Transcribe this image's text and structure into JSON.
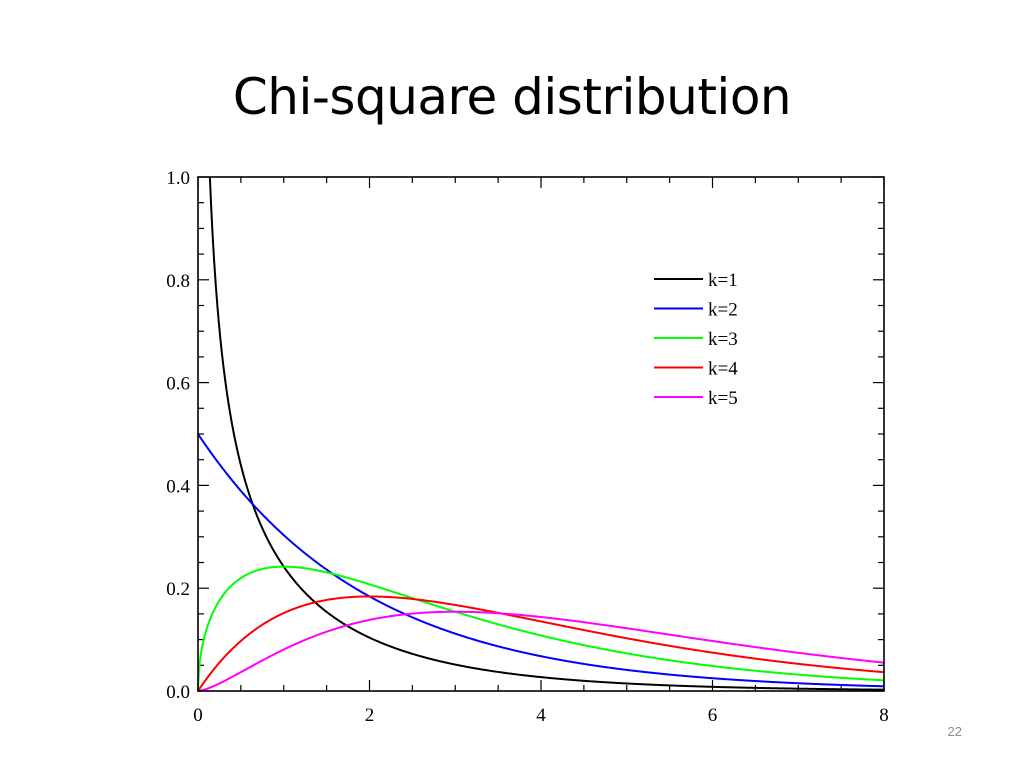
{
  "slide": {
    "title": "Chi-square distribution",
    "page_number": "22"
  },
  "chart_data": {
    "type": "line",
    "title": "",
    "xlabel": "",
    "ylabel": "",
    "xlim": [
      0,
      8
    ],
    "ylim": [
      0,
      1.0
    ],
    "x_ticks": [
      0,
      2,
      4,
      6,
      8
    ],
    "x_tick_labels": [
      "0",
      "2",
      "4",
      "6",
      "8"
    ],
    "y_ticks": [
      0.0,
      0.2,
      0.4,
      0.6,
      0.8,
      1.0
    ],
    "y_tick_labels": [
      "0.0",
      "0.2",
      "0.4",
      "0.6",
      "0.8",
      "1.0"
    ],
    "grid": false,
    "legend_position": "top-right",
    "series": [
      {
        "name": "k=1",
        "k": 1,
        "color": "#000000",
        "x": [
          0.15,
          0.25,
          0.5,
          0.75,
          1,
          1.5,
          2,
          3,
          4,
          5,
          6,
          7,
          8
        ],
        "values": [
          0.94,
          0.7,
          0.44,
          0.32,
          0.24,
          0.15,
          0.1,
          0.05,
          0.03,
          0.01,
          0.01,
          0.0,
          0.0
        ]
      },
      {
        "name": "k=2",
        "k": 2,
        "color": "#0000ff",
        "x": [
          0,
          0.5,
          1,
          1.5,
          2,
          3,
          4,
          5,
          6,
          7,
          8
        ],
        "values": [
          0.5,
          0.39,
          0.3,
          0.24,
          0.18,
          0.11,
          0.07,
          0.04,
          0.02,
          0.02,
          0.01
        ]
      },
      {
        "name": "k=3",
        "k": 3,
        "color": "#00ff00",
        "x": [
          0,
          0.25,
          0.5,
          1,
          1.5,
          2,
          3,
          4,
          5,
          6,
          7,
          8
        ],
        "values": [
          0.0,
          0.18,
          0.22,
          0.24,
          0.23,
          0.21,
          0.15,
          0.11,
          0.07,
          0.05,
          0.03,
          0.02
        ]
      },
      {
        "name": "k=4",
        "k": 4,
        "color": "#ff0000",
        "x": [
          0,
          0.5,
          1,
          1.5,
          2,
          3,
          4,
          5,
          6,
          7,
          8
        ],
        "values": [
          0.0,
          0.1,
          0.15,
          0.18,
          0.18,
          0.17,
          0.14,
          0.1,
          0.07,
          0.05,
          0.04
        ]
      },
      {
        "name": "k=5",
        "k": 5,
        "color": "#ff00ff",
        "x": [
          0,
          0.5,
          1,
          1.5,
          2,
          2.5,
          3,
          4,
          5,
          6,
          7,
          8
        ],
        "values": [
          0.0,
          0.04,
          0.08,
          0.12,
          0.14,
          0.15,
          0.15,
          0.14,
          0.12,
          0.1,
          0.07,
          0.05
        ]
      }
    ]
  }
}
